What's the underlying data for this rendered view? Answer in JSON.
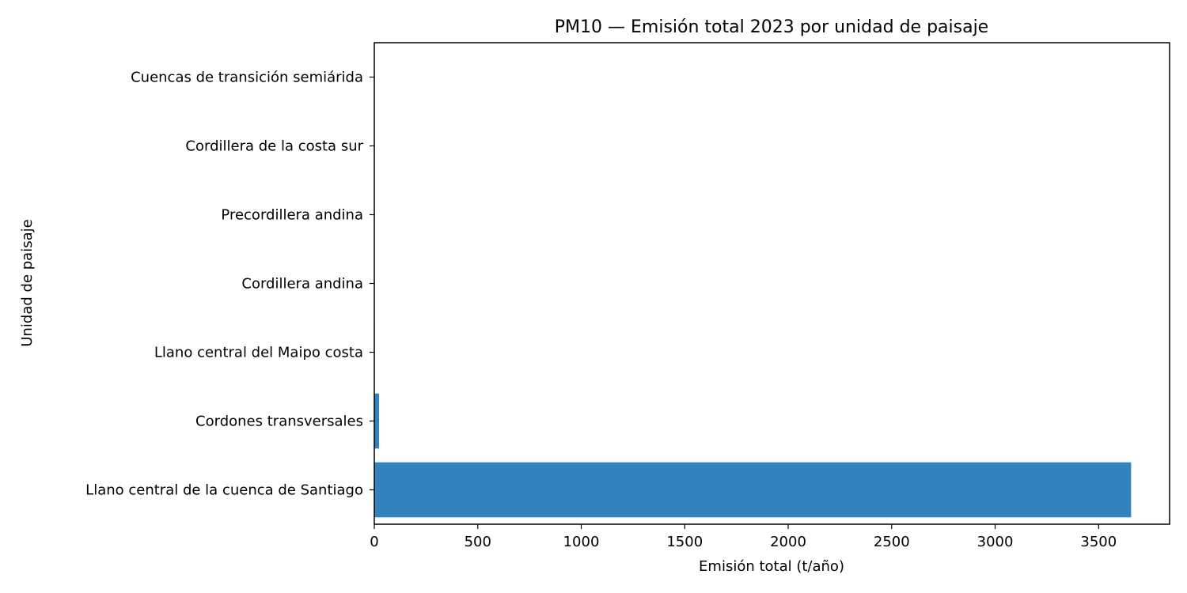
{
  "chart_data": {
    "type": "bar",
    "orientation": "horizontal",
    "title": "PM10 — Emisión total 2023 por unidad de paisaje",
    "xlabel": "Emisión total (t/año)",
    "ylabel": "Unidad de paisaje",
    "categories": [
      "Llano central de la cuenca de Santiago",
      "Cordones transversales",
      "Llano central del Maipo costa",
      "Cordillera andina",
      "Precordillera andina",
      "Cordillera de la costa sur",
      "Cuencas de transición semiárida"
    ],
    "values": [
      3657,
      23,
      2,
      1,
      0.5,
      0.3,
      0.2
    ],
    "xlim": [
      0,
      3843
    ],
    "xticks": [
      0,
      500,
      1000,
      1500,
      2000,
      2500,
      3000,
      3500
    ],
    "grid": false,
    "bar_color": "#3182bd"
  }
}
